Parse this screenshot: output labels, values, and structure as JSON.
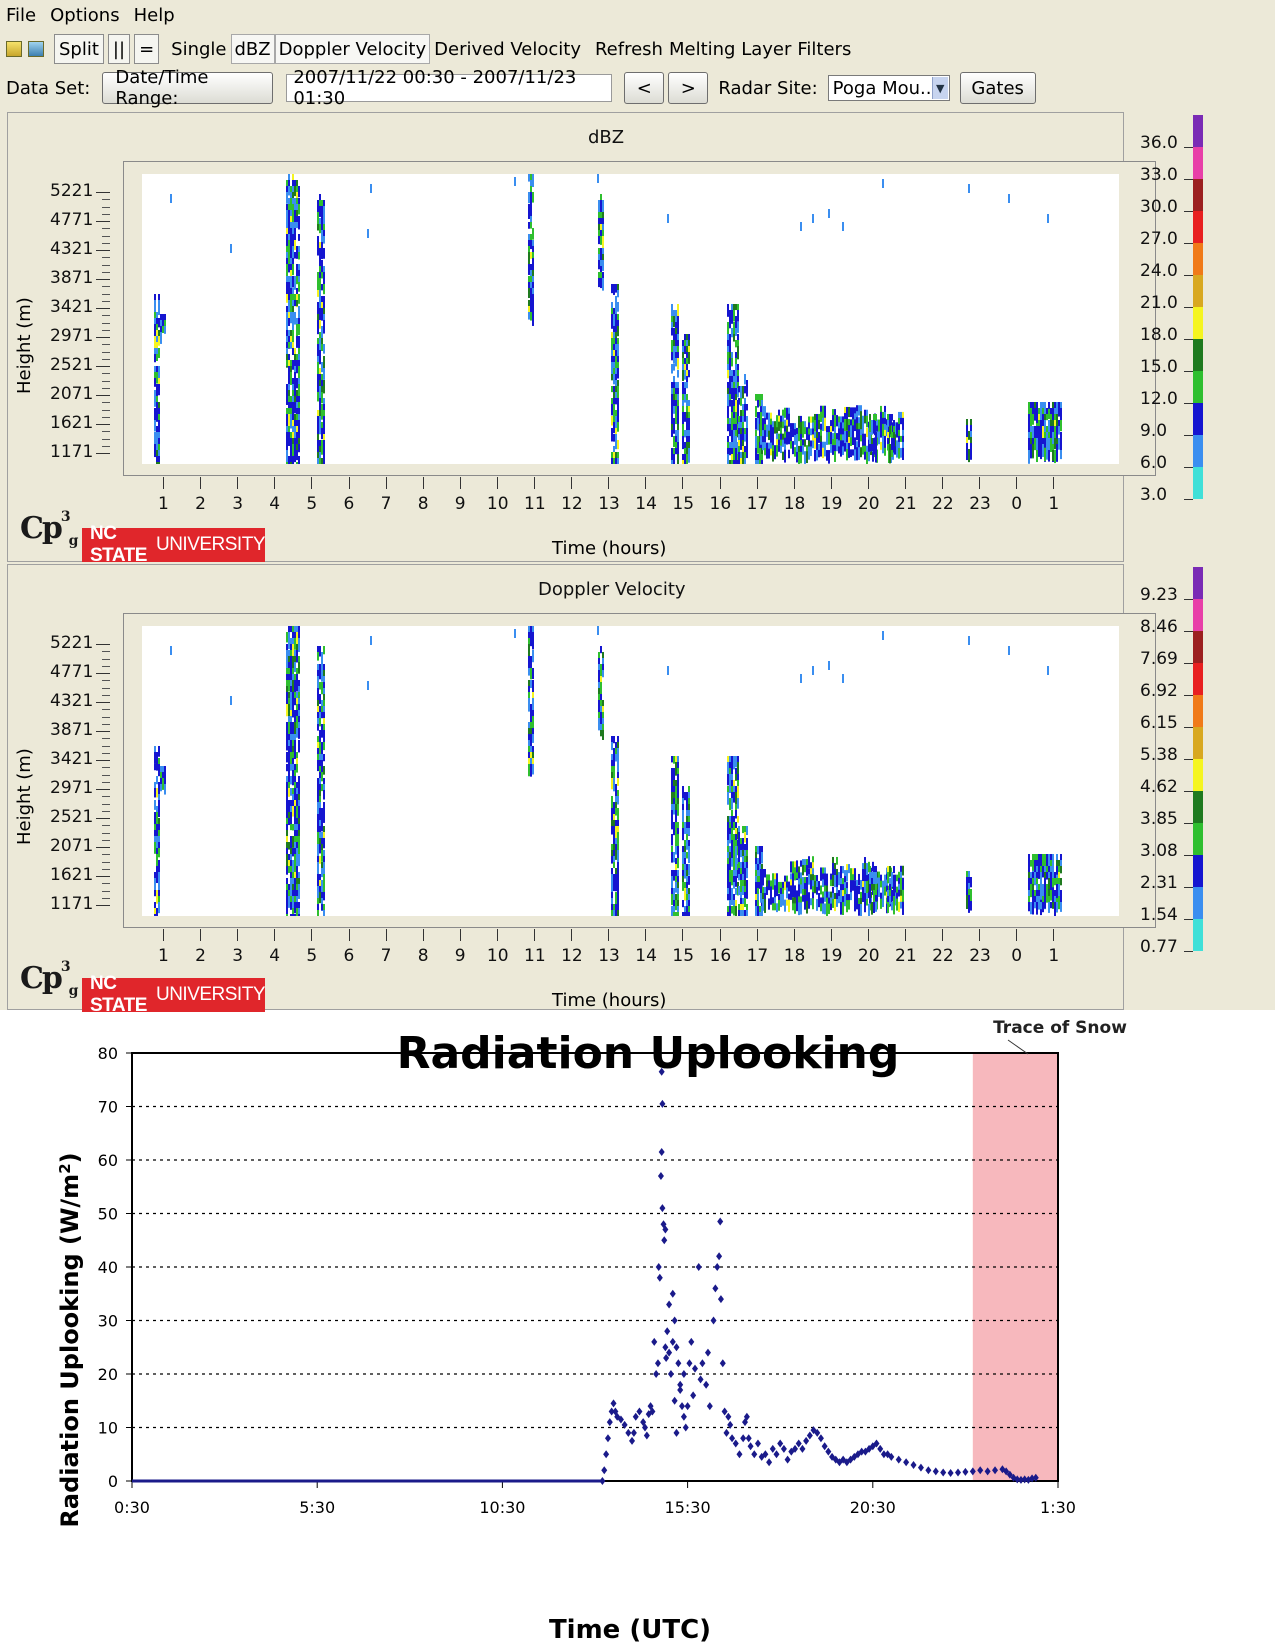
{
  "menu": {
    "file": "File",
    "options": "Options",
    "help": "Help"
  },
  "toolbar": {
    "split": "Split",
    "parallel": "||",
    "equals": "=",
    "single": "Single",
    "dbz": "dBZ",
    "doppler": "Doppler Velocity",
    "derived": "Derived Velocity",
    "refresh": "Refresh",
    "melting": "Melting Layer",
    "filters": "Filters"
  },
  "datarow": {
    "dataset_label": "Data Set:",
    "daterange_button": "Date/Time Range:",
    "daterange_value": "2007/11/22 00:30 - 2007/11/23 01:30",
    "prev": "<",
    "next": ">",
    "radar_label": "Radar Site:",
    "radar_value": "Poga Mou...",
    "gates": "Gates"
  },
  "panels": [
    {
      "title": "dBZ",
      "ylabel": "Height (m)",
      "xlabel": "Time (hours)",
      "yticks": [
        "5221",
        "4771",
        "4321",
        "3871",
        "3421",
        "2971",
        "2521",
        "2071",
        "1621",
        "1171"
      ],
      "xticks": [
        "1",
        "2",
        "3",
        "4",
        "5",
        "6",
        "7",
        "8",
        "9",
        "10",
        "11",
        "12",
        "13",
        "14",
        "15",
        "16",
        "17",
        "18",
        "19",
        "20",
        "21",
        "22",
        "23",
        "0",
        "1"
      ],
      "colorbar": [
        "36.0",
        "33.0",
        "30.0",
        "27.0",
        "24.0",
        "21.0",
        "18.0",
        "15.0",
        "12.0",
        "9.0",
        "6.0",
        "3.0"
      ]
    },
    {
      "title": "Doppler Velocity",
      "ylabel": "Height (m)",
      "xlabel": "Time (hours)",
      "yticks": [
        "5221",
        "4771",
        "4321",
        "3871",
        "3421",
        "2971",
        "2521",
        "2071",
        "1621",
        "1171"
      ],
      "xticks": [
        "1",
        "2",
        "3",
        "4",
        "5",
        "6",
        "7",
        "8",
        "9",
        "10",
        "11",
        "12",
        "13",
        "14",
        "15",
        "16",
        "17",
        "18",
        "19",
        "20",
        "21",
        "22",
        "23",
        "0",
        "1"
      ],
      "colorbar": [
        "9.23",
        "8.46",
        "7.69",
        "6.92",
        "6.15",
        "5.38",
        "4.62",
        "3.85",
        "3.08",
        "2.31",
        "1.54",
        "0.77"
      ]
    }
  ],
  "colorbar_colors": [
    "#7a2bb5",
    "#e83fa8",
    "#9c2020",
    "#e82020",
    "#f07a18",
    "#d8a820",
    "#f5f520",
    "#1f7a1f",
    "#2fbf2f",
    "#1515d0",
    "#3a8ef0",
    "#40e0d8"
  ],
  "logos": {
    "cp": "Cp",
    "cp_sup": "3",
    "cp_sub": "g",
    "ncsu_bold": "NC STATE",
    "ncsu_rest": "UNIVERSITY"
  },
  "radiation": {
    "title": "Radiation Uplooking",
    "ylabel": "Radiation Uplooking (W/m",
    "ylabel_sup": "2",
    "ylabel_end": ")",
    "xlabel": "Time (UTC)",
    "annotation": "Trace of Snow",
    "shade_color": "#f7b8bd",
    "point_color": "#1a1a8a"
  },
  "chart_data": {
    "type": "scatter",
    "title": "Radiation Uplooking",
    "xlabel": "Time (UTC)",
    "ylabel": "Radiation Uplooking (W/m2)",
    "ylim": [
      0,
      80
    ],
    "yticks": [
      0,
      10,
      20,
      30,
      40,
      50,
      60,
      70,
      80
    ],
    "xlim_hours": [
      0.5,
      25.5
    ],
    "xticks": [
      "0:30",
      "5:30",
      "10:30",
      "15:30",
      "20:30",
      "1:30"
    ],
    "grid": "horizontal dotted",
    "shaded_region_hours": [
      23.2,
      25.5
    ],
    "annotation": "Trace of Snow",
    "series": [
      {
        "points": [
          [
            13.2,
            0
          ],
          [
            13.25,
            2
          ],
          [
            13.3,
            5
          ],
          [
            13.35,
            8
          ],
          [
            13.4,
            11
          ],
          [
            13.45,
            13
          ],
          [
            13.5,
            14.5
          ],
          [
            13.55,
            13
          ],
          [
            13.6,
            12
          ],
          [
            13.7,
            11.5
          ],
          [
            13.8,
            10.5
          ],
          [
            13.9,
            9
          ],
          [
            14.0,
            7.5
          ],
          [
            14.05,
            9
          ],
          [
            14.1,
            12
          ],
          [
            14.2,
            13
          ],
          [
            14.3,
            11
          ],
          [
            14.35,
            10
          ],
          [
            14.4,
            8.5
          ],
          [
            14.45,
            12.5
          ],
          [
            14.5,
            14
          ],
          [
            14.55,
            13
          ],
          [
            14.6,
            26
          ],
          [
            14.65,
            20
          ],
          [
            14.7,
            22
          ],
          [
            14.72,
            40
          ],
          [
            14.75,
            38
          ],
          [
            14.78,
            57
          ],
          [
            14.8,
            61.5
          ],
          [
            14.82,
            51
          ],
          [
            14.85,
            48
          ],
          [
            14.87,
            45
          ],
          [
            14.9,
            25
          ],
          [
            14.92,
            23
          ],
          [
            14.95,
            28
          ],
          [
            15.0,
            24
          ],
          [
            15.05,
            20
          ],
          [
            15.1,
            26
          ],
          [
            15.15,
            30
          ],
          [
            15.2,
            25
          ],
          [
            15.25,
            22
          ],
          [
            15.3,
            18
          ],
          [
            15.35,
            14
          ],
          [
            15.4,
            12
          ],
          [
            15.45,
            10
          ],
          [
            14.8,
            76.5
          ],
          [
            14.82,
            70.5
          ],
          [
            14.9,
            47
          ],
          [
            15.0,
            33
          ],
          [
            15.1,
            35
          ],
          [
            15.15,
            15
          ],
          [
            15.2,
            9
          ],
          [
            15.3,
            17
          ],
          [
            15.4,
            20
          ],
          [
            15.5,
            14
          ],
          [
            15.55,
            22
          ],
          [
            15.6,
            26
          ],
          [
            15.65,
            16
          ],
          [
            15.7,
            21
          ],
          [
            15.8,
            40
          ],
          [
            15.85,
            19
          ],
          [
            15.9,
            22
          ],
          [
            16.0,
            18
          ],
          [
            16.05,
            24
          ],
          [
            16.1,
            14
          ],
          [
            16.2,
            30
          ],
          [
            16.25,
            36
          ],
          [
            16.3,
            40
          ],
          [
            16.35,
            42
          ],
          [
            16.38,
            48.5
          ],
          [
            16.4,
            34
          ],
          [
            16.45,
            22
          ],
          [
            16.5,
            13
          ],
          [
            16.55,
            9
          ],
          [
            16.6,
            12
          ],
          [
            16.65,
            10.5
          ],
          [
            16.7,
            8
          ],
          [
            16.8,
            7
          ],
          [
            16.9,
            5
          ],
          [
            17.0,
            8
          ],
          [
            17.05,
            11
          ],
          [
            17.1,
            12
          ],
          [
            17.15,
            8
          ],
          [
            17.2,
            6.5
          ],
          [
            17.3,
            5
          ],
          [
            17.4,
            7
          ],
          [
            17.5,
            4.5
          ],
          [
            17.6,
            5
          ],
          [
            17.7,
            3.5
          ],
          [
            17.8,
            6
          ],
          [
            17.9,
            5
          ],
          [
            18.0,
            7
          ],
          [
            18.1,
            6
          ],
          [
            18.2,
            4
          ],
          [
            18.3,
            5.5
          ],
          [
            18.4,
            6
          ],
          [
            18.5,
            7
          ],
          [
            18.6,
            6
          ],
          [
            18.7,
            7.5
          ],
          [
            18.8,
            8.5
          ],
          [
            18.9,
            9.5
          ],
          [
            19.0,
            9
          ],
          [
            19.1,
            8
          ],
          [
            19.2,
            6.5
          ],
          [
            19.3,
            5.5
          ],
          [
            19.4,
            4.5
          ],
          [
            19.5,
            4
          ],
          [
            19.6,
            3.5
          ],
          [
            19.7,
            4
          ],
          [
            19.8,
            3.5
          ],
          [
            19.9,
            4
          ],
          [
            20.0,
            4.5
          ],
          [
            20.1,
            5
          ],
          [
            20.2,
            5.5
          ],
          [
            20.3,
            5.5
          ],
          [
            20.4,
            6
          ],
          [
            20.5,
            6.5
          ],
          [
            20.6,
            7
          ],
          [
            20.7,
            6
          ],
          [
            20.8,
            5
          ],
          [
            20.9,
            5
          ],
          [
            21.0,
            4.5
          ],
          [
            21.2,
            4
          ],
          [
            21.4,
            3.5
          ],
          [
            21.6,
            3
          ],
          [
            21.8,
            2.5
          ],
          [
            22.0,
            2
          ],
          [
            22.2,
            1.8
          ],
          [
            22.4,
            1.6
          ],
          [
            22.6,
            1.5
          ],
          [
            22.8,
            1.6
          ],
          [
            23.0,
            1.7
          ],
          [
            23.2,
            1.8
          ],
          [
            23.4,
            2
          ],
          [
            23.6,
            1.8
          ],
          [
            23.8,
            2
          ],
          [
            24.0,
            2.2
          ],
          [
            24.1,
            1.8
          ],
          [
            24.2,
            1.2
          ],
          [
            24.3,
            0.6
          ],
          [
            24.4,
            0.3
          ],
          [
            24.5,
            0.2
          ],
          [
            24.6,
            0.3
          ],
          [
            24.7,
            0.2
          ],
          [
            24.8,
            0.5
          ],
          [
            24.9,
            0.6
          ]
        ]
      }
    ]
  }
}
